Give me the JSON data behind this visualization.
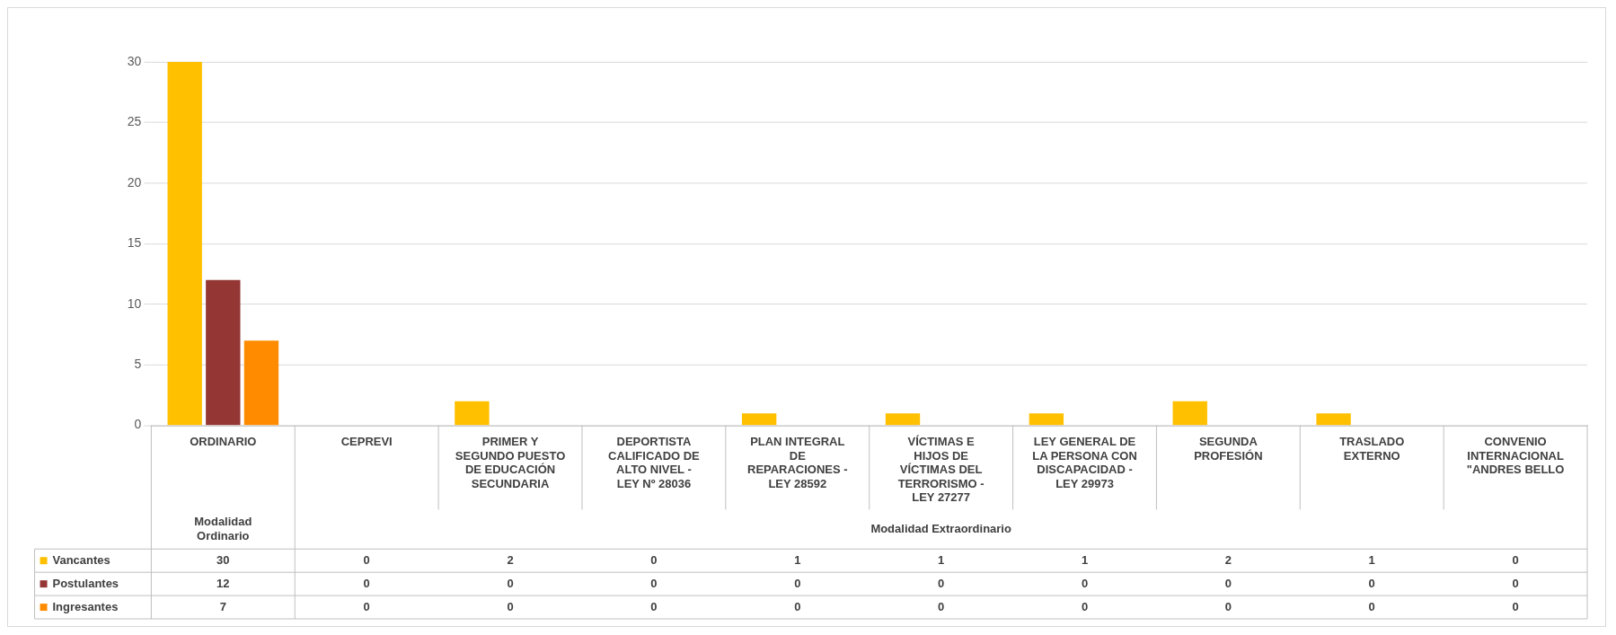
{
  "chart_data": {
    "type": "bar",
    "categories": [
      "ORDINARIO",
      "CEPREVI",
      "PRIMER Y SEGUNDO PUESTO DE EDUCACIÓN SECUNDARIA",
      "DEPORTISTA CALIFICADO DE ALTO NIVEL - LEY Nº 28036",
      "PLAN INTEGRAL DE REPARACIONES - LEY 28592",
      "VÍCTIMAS E HIJOS DE VÍCTIMAS DEL TERRORISMO - LEY 27277",
      "LEY GENERAL DE LA PERSONA CON DISCAPACIDAD - LEY 29973",
      "SEGUNDA PROFESIÓN",
      "TRASLADO EXTERNO",
      "CONVENIO INTERNACIONAL \"ANDRES BELLO"
    ],
    "series": [
      {
        "name": "Vancantes",
        "color": "#ffc000",
        "values": [
          30,
          0,
          2,
          0,
          1,
          1,
          1,
          2,
          1,
          0
        ]
      },
      {
        "name": "Postulantes",
        "color": "#943634",
        "values": [
          12,
          0,
          0,
          0,
          0,
          0,
          0,
          0,
          0,
          0
        ]
      },
      {
        "name": "Ingresantes",
        "color": "#ff8c00",
        "values": [
          7,
          0,
          0,
          0,
          0,
          0,
          0,
          0,
          0,
          0
        ]
      }
    ],
    "ylim": [
      0,
      30
    ],
    "yticks": [
      0,
      5,
      10,
      15,
      20,
      25,
      30
    ],
    "grid": "y",
    "legend": "bottom",
    "data_labels": true,
    "annotations": [
      "Modalidad Ordinario",
      "Modalidad Extraordinario"
    ]
  }
}
